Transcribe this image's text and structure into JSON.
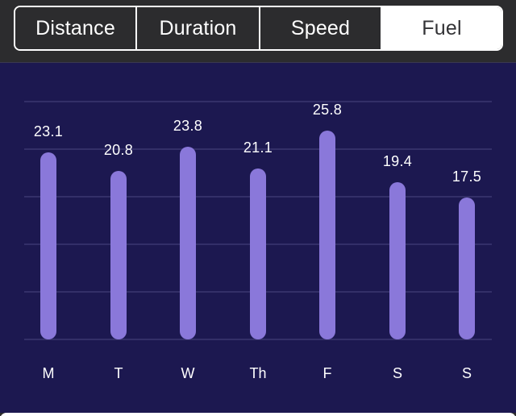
{
  "segmented_control": {
    "options": [
      "Distance",
      "Duration",
      "Speed",
      "Fuel"
    ],
    "selected": "Fuel"
  },
  "colors": {
    "topbar_bg": "#2c2c2e",
    "chart_bg": "#1c1850",
    "bar": "#8a78da",
    "gridline": "#332f68",
    "text": "#ffffff"
  },
  "chart_data": {
    "type": "bar",
    "title": "",
    "metric": "Fuel",
    "categories": [
      "M",
      "T",
      "W",
      "Th",
      "F",
      "S",
      "S"
    ],
    "values": [
      23.1,
      20.8,
      23.8,
      21.1,
      25.8,
      19.4,
      17.5
    ],
    "value_labels": [
      "23.1",
      "20.8",
      "23.8",
      "21.1",
      "25.8",
      "19.4",
      "17.5"
    ],
    "xlabel": "",
    "ylabel": "",
    "ylim": [
      0,
      30
    ],
    "grid": true,
    "gridlines": 6,
    "legend": "none",
    "data_labels": "above-bars"
  }
}
